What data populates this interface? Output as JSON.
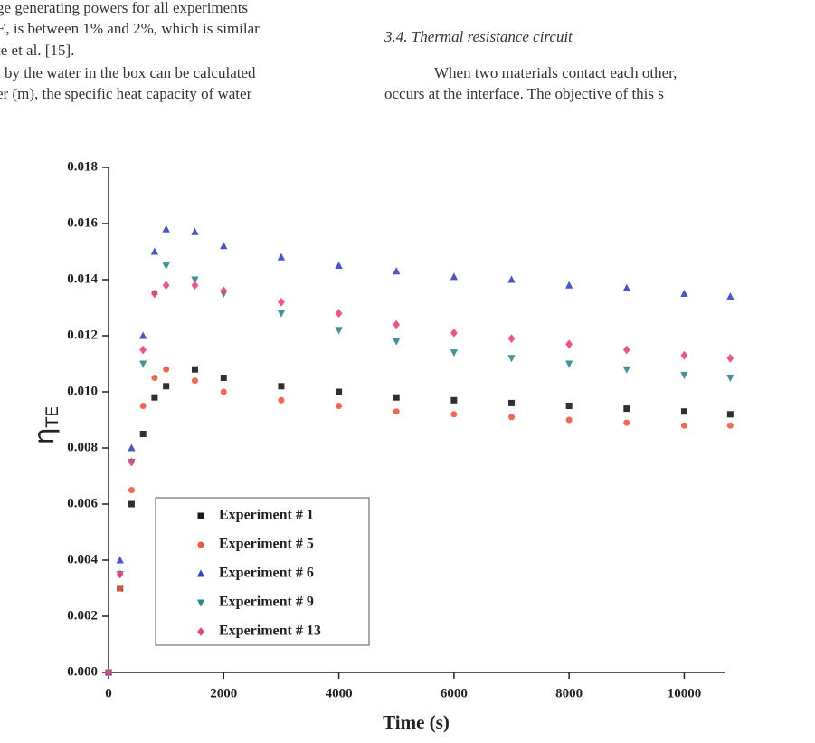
{
  "page_text": {
    "left_lines": [
      "ge generating powers for all experiments",
      "E, is between 1% and 2%, which is similar",
      "te et al. [15].",
      "l by the water in the box can be calculated",
      "er (m), the specific heat capacity of water"
    ],
    "section_heading": "3.4. Thermal resistance circuit",
    "right_lines": [
      "When two materials contact each other,",
      "occurs at the interface. The objective of this s"
    ]
  },
  "chart_data": {
    "type": "scatter",
    "x_label": "Time (s)",
    "y_label": "η",
    "y_label_sub": "TE",
    "x": [
      0,
      200,
      400,
      600,
      800,
      1000,
      1500,
      2000,
      3000,
      4000,
      5000,
      6000,
      7000,
      8000,
      9000,
      10000,
      10800
    ],
    "series": [
      {
        "name": "Experiment # 1",
        "color": "#1a1a1a",
        "marker": "square",
        "values": [
          0,
          0.003,
          0.006,
          0.0085,
          0.0098,
          0.0102,
          0.0108,
          0.0105,
          0.0102,
          0.01,
          0.0098,
          0.0097,
          0.0096,
          0.0095,
          0.0094,
          0.0093,
          0.0092
        ]
      },
      {
        "name": "Experiment # 5",
        "color": "#f2553f",
        "marker": "circle",
        "values": [
          0,
          0.003,
          0.0065,
          0.0095,
          0.0105,
          0.0108,
          0.0104,
          0.01,
          0.0097,
          0.0095,
          0.0093,
          0.0092,
          0.0091,
          0.009,
          0.0089,
          0.0088,
          0.0088
        ]
      },
      {
        "name": "Experiment # 6",
        "color": "#3344c4",
        "marker": "triangle-up",
        "values": [
          0,
          0.004,
          0.008,
          0.012,
          0.015,
          0.0158,
          0.0157,
          0.0152,
          0.0148,
          0.0145,
          0.0143,
          0.0141,
          0.014,
          0.0138,
          0.0137,
          0.0135,
          0.0134
        ]
      },
      {
        "name": "Experiment # 9",
        "color": "#2a8a8c",
        "marker": "triangle-down",
        "values": [
          0,
          0.0035,
          0.0075,
          0.011,
          0.0135,
          0.0145,
          0.014,
          0.0135,
          0.0128,
          0.0122,
          0.0118,
          0.0114,
          0.0112,
          0.011,
          0.0108,
          0.0106,
          0.0105
        ]
      },
      {
        "name": "Experiment # 13",
        "color": "#f0407a",
        "marker": "diamond",
        "values": [
          0,
          0.0035,
          0.0075,
          0.0115,
          0.0135,
          0.0138,
          0.0138,
          0.0136,
          0.0132,
          0.0128,
          0.0124,
          0.0121,
          0.0119,
          0.0117,
          0.0115,
          0.0113,
          0.0112
        ]
      }
    ],
    "xlim": [
      0,
      10700
    ],
    "ylim": [
      0,
      0.018
    ],
    "xticks": [
      0,
      2000,
      4000,
      6000,
      8000,
      10000
    ],
    "yticks": [
      {
        "value": 0,
        "label": "0.000"
      },
      0.002,
      0.004,
      0.006,
      0.008,
      {
        "value": 0.01,
        "label": "0.010"
      },
      0.012,
      0.014,
      0.016,
      0.018
    ],
    "legend": "lower left"
  }
}
